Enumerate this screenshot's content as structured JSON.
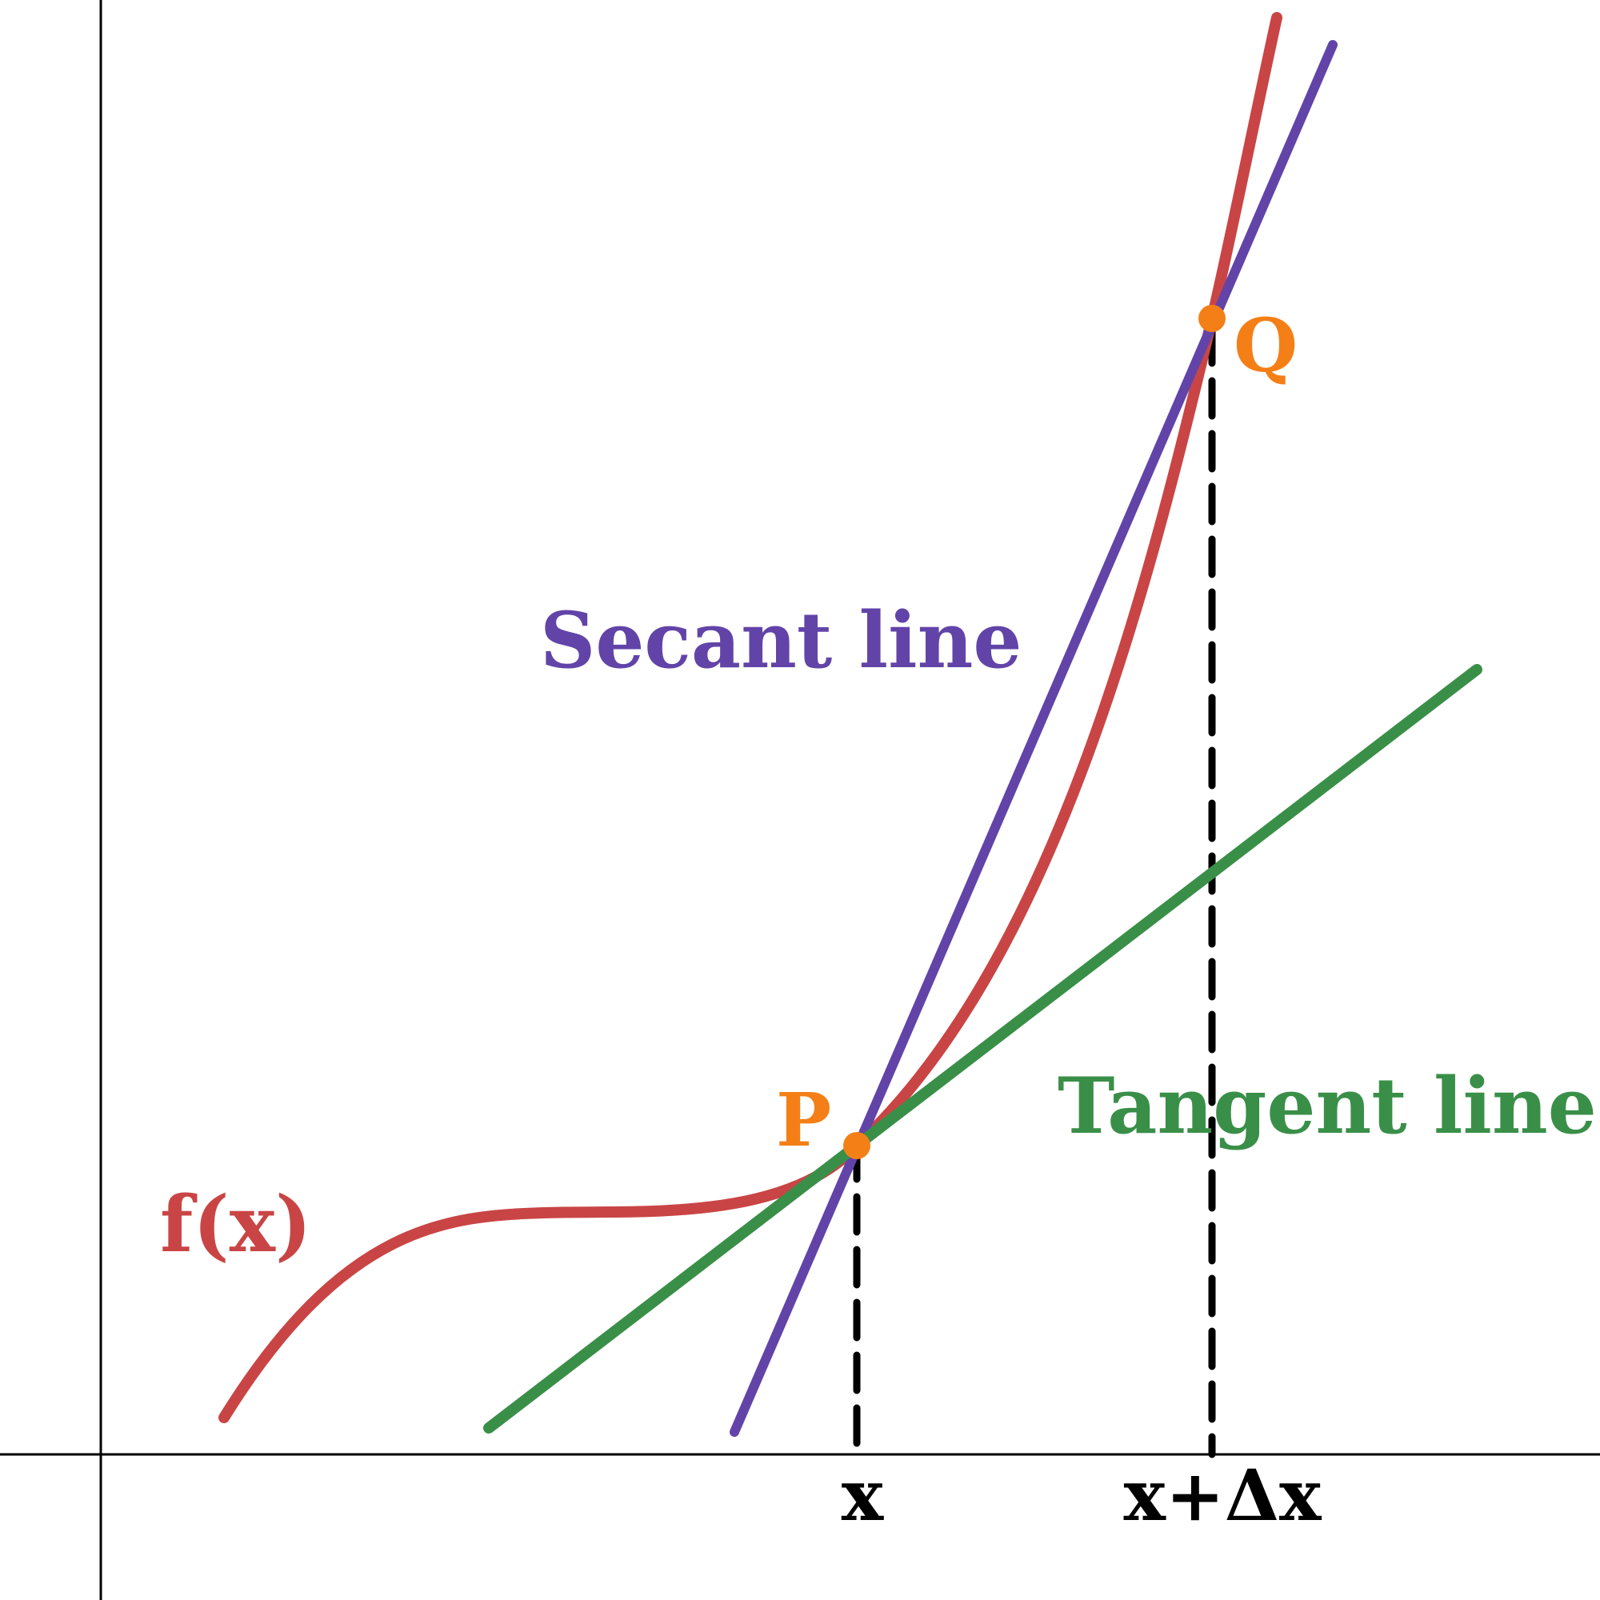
{
  "labels": {
    "function": "f(x)",
    "secant": "Secant line",
    "tangent": "Tangent line",
    "point_p": "P",
    "point_q": "Q",
    "x_tick": "x",
    "x_delta_tick": "x+Δx"
  },
  "colors": {
    "curve": "#c94545",
    "secant": "#6244a8",
    "tangent": "#3a8f48",
    "points": "#f57f17",
    "axes": "#000000",
    "guides": "#000000",
    "background": "#ffffff"
  }
}
